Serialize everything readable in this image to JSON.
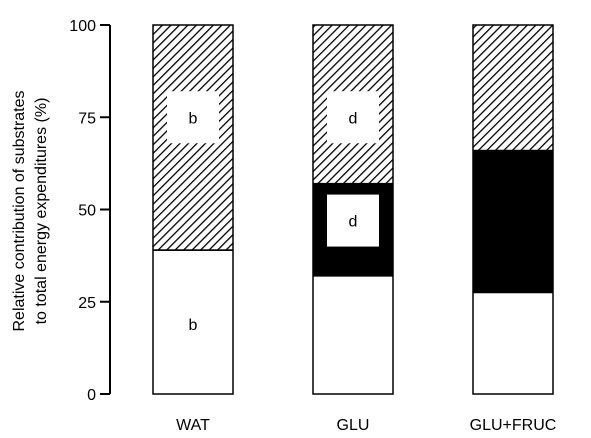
{
  "chart_data": {
    "type": "bar",
    "stacked": true,
    "categories": [
      "WAT",
      "GLU",
      "GLU+FRUC"
    ],
    "ylabel_lines": [
      "Relative contribution of substrates",
      "to total energy expenditures (%)"
    ],
    "ylim": [
      0,
      100
    ],
    "yticks": [
      0,
      25,
      50,
      75,
      100
    ],
    "series": [
      {
        "pattern": "white",
        "values": [
          39,
          32,
          27.5
        ]
      },
      {
        "pattern": "black",
        "values": [
          0,
          25,
          38.5
        ]
      },
      {
        "pattern": "hatched",
        "values": [
          61,
          43,
          34
        ]
      }
    ],
    "annotations": [
      {
        "category": "WAT",
        "y": 75,
        "text": "b"
      },
      {
        "category": "WAT",
        "y": 19,
        "text": "b"
      },
      {
        "category": "GLU",
        "y": 75,
        "text": "d"
      },
      {
        "category": "GLU",
        "y": 47,
        "text": "d"
      }
    ]
  }
}
